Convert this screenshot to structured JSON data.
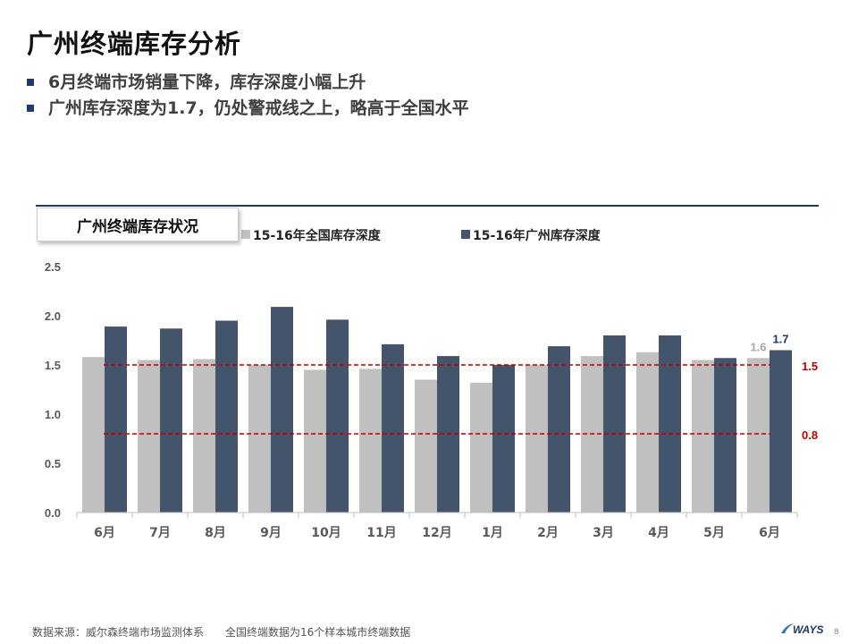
{
  "header": {
    "title": "广州终端库存分析",
    "bullets": [
      "6月终端市场销量下降，库存深度小幅上升",
      "广州库存深度为1.7，仍处警戒线之上，略高于全国水平"
    ]
  },
  "chart_box_title": "广州终端库存状况",
  "chart_data": {
    "type": "bar",
    "categories": [
      "6月",
      "7月",
      "8月",
      "9月",
      "10月",
      "11月",
      "12月",
      "1月",
      "2月",
      "3月",
      "4月",
      "5月",
      "6月"
    ],
    "series": [
      {
        "name": "15-16年全国库存深度",
        "color": "#c0c0c0",
        "values": [
          1.58,
          1.55,
          1.56,
          1.5,
          1.45,
          1.46,
          1.35,
          1.32,
          1.5,
          1.59,
          1.63,
          1.55,
          1.57
        ]
      },
      {
        "name": "15-16年广州库存深度",
        "color": "#44546a",
        "values": [
          1.89,
          1.87,
          1.95,
          2.09,
          1.96,
          1.71,
          1.59,
          1.5,
          1.69,
          1.8,
          1.8,
          1.57,
          1.65
        ]
      }
    ],
    "ylim": [
      0,
      2.5
    ],
    "yticks": [
      "0.0",
      "0.5",
      "1.0",
      "1.5",
      "2.0",
      "2.5"
    ],
    "reference_lines": [
      {
        "value": 1.5,
        "label": "1.5",
        "color": "#c00000"
      },
      {
        "value": 0.8,
        "label": "0.8",
        "color": "#c00000"
      }
    ],
    "data_labels": [
      {
        "series": 0,
        "index": 12,
        "text": "1.6",
        "color": "#a6a6a6"
      },
      {
        "series": 1,
        "index": 12,
        "text": "1.7",
        "color": "#1f3864"
      }
    ],
    "legend_position": "top",
    "grid": false
  },
  "footer": {
    "source": "数据来源：威尔森终端市场监测体系",
    "note": "全国终端数据为16个样本城市终端数据"
  },
  "logo_text": "WAYS",
  "page_number": "8"
}
